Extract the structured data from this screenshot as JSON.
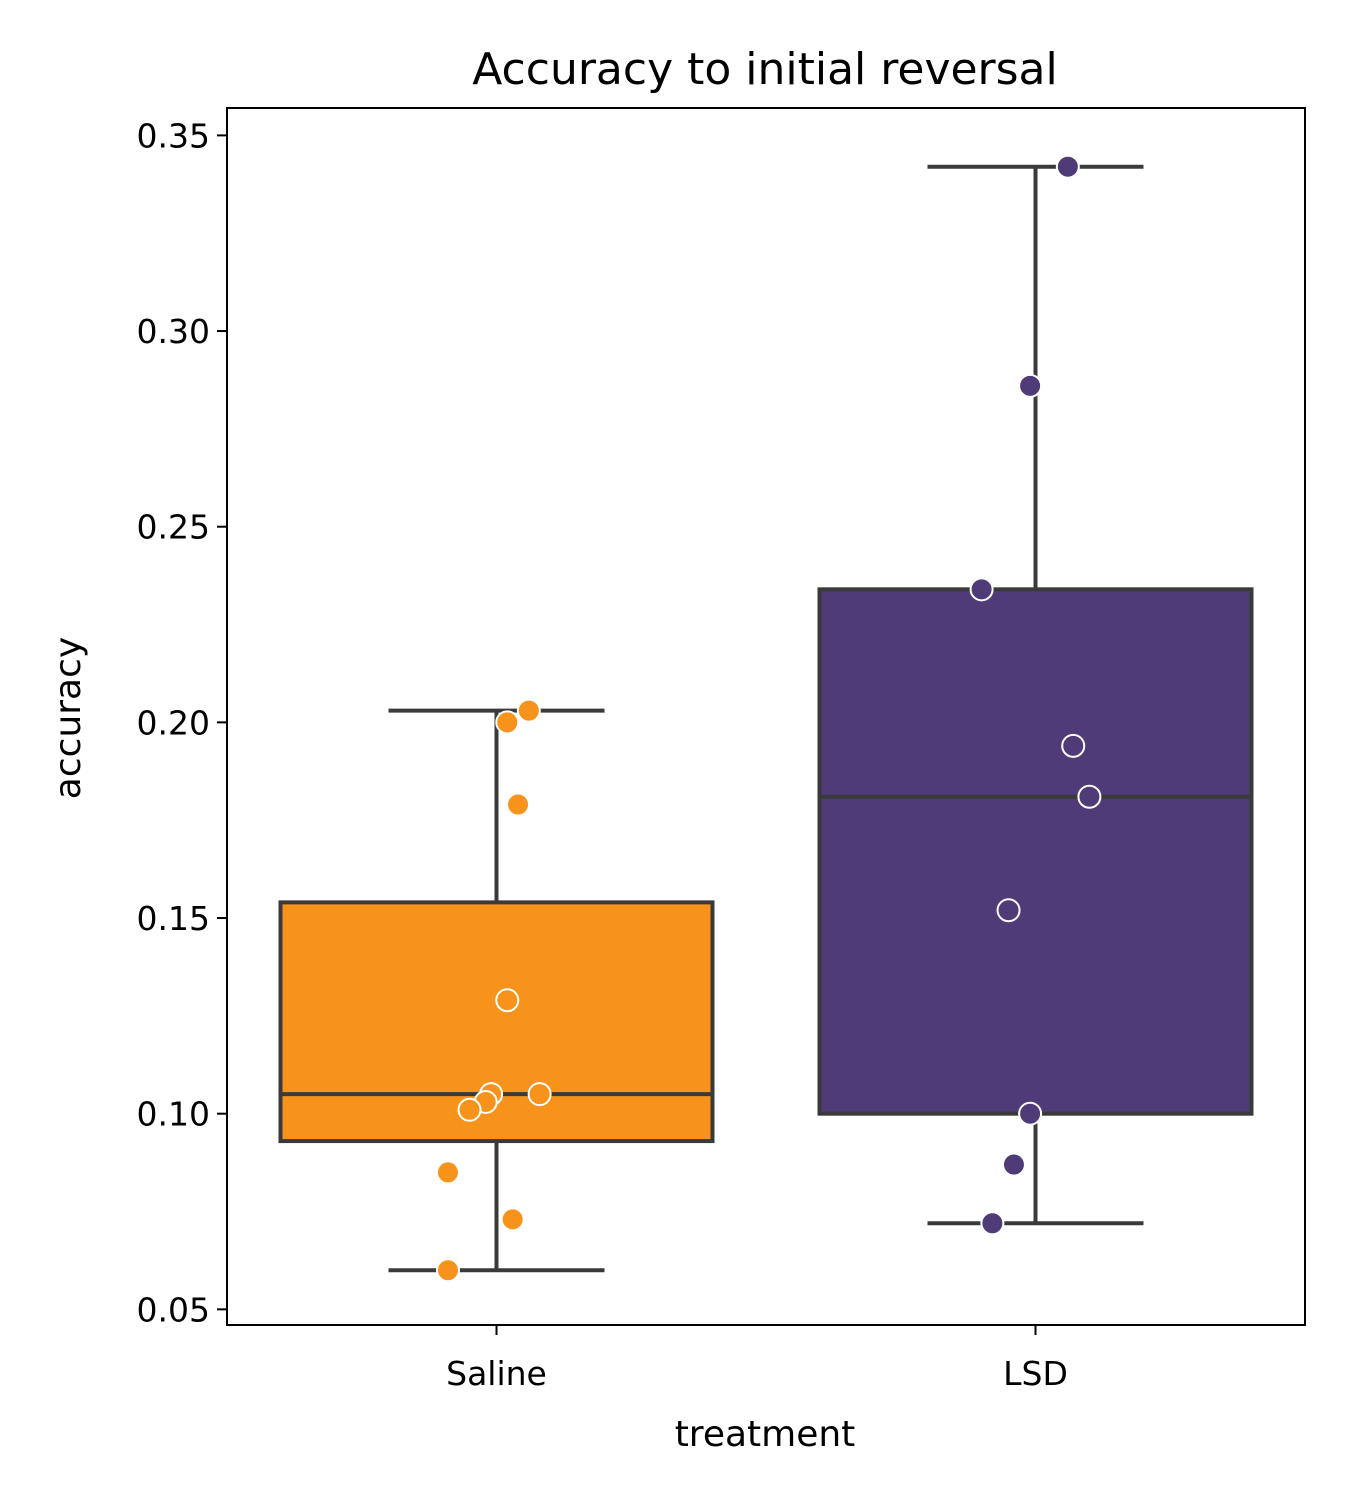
{
  "chart_data": {
    "type": "box",
    "title": "Accuracy to initial reversal",
    "xlabel": "treatment",
    "ylabel": "accuracy",
    "categories": [
      "Saline",
      "LSD"
    ],
    "ylim": [
      0.046,
      0.357
    ],
    "yticks": [
      "0.05",
      "0.10",
      "0.15",
      "0.20",
      "0.25",
      "0.30",
      "0.35"
    ],
    "grid": false,
    "legend": "none",
    "boxes": [
      {
        "name": "Saline",
        "color": "#f7931a",
        "whisker_low": 0.06,
        "q1": 0.093,
        "median": 0.105,
        "q3": 0.154,
        "whisker_high": 0.203
      },
      {
        "name": "LSD",
        "color": "#4f3b78",
        "whisker_low": 0.072,
        "q1": 0.1,
        "median": 0.181,
        "q3": 0.234,
        "whisker_high": 0.342
      }
    ],
    "points": [
      {
        "category": "Saline",
        "jitter": 0.02,
        "y": 0.129
      },
      {
        "category": "Saline",
        "jitter": -0.01,
        "y": 0.105
      },
      {
        "category": "Saline",
        "jitter": 0.08,
        "y": 0.105
      },
      {
        "category": "Saline",
        "jitter": -0.02,
        "y": 0.103
      },
      {
        "category": "Saline",
        "jitter": -0.05,
        "y": 0.101
      },
      {
        "category": "Saline",
        "jitter": 0.06,
        "y": 0.203
      },
      {
        "category": "Saline",
        "jitter": 0.02,
        "y": 0.2
      },
      {
        "category": "Saline",
        "jitter": 0.04,
        "y": 0.179
      },
      {
        "category": "Saline",
        "jitter": -0.09,
        "y": 0.085
      },
      {
        "category": "Saline",
        "jitter": 0.03,
        "y": 0.073
      },
      {
        "category": "Saline",
        "jitter": -0.09,
        "y": 0.06
      },
      {
        "category": "LSD",
        "jitter": 0.06,
        "y": 0.342
      },
      {
        "category": "LSD",
        "jitter": -0.01,
        "y": 0.286
      },
      {
        "category": "LSD",
        "jitter": -0.1,
        "y": 0.234
      },
      {
        "category": "LSD",
        "jitter": 0.07,
        "y": 0.194
      },
      {
        "category": "LSD",
        "jitter": 0.1,
        "y": 0.181
      },
      {
        "category": "LSD",
        "jitter": -0.05,
        "y": 0.152
      },
      {
        "category": "LSD",
        "jitter": -0.01,
        "y": 0.1
      },
      {
        "category": "LSD",
        "jitter": -0.04,
        "y": 0.087
      },
      {
        "category": "LSD",
        "jitter": -0.08,
        "y": 0.072
      }
    ]
  }
}
